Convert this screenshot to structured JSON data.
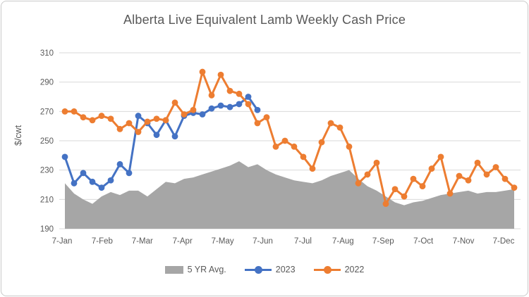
{
  "chart_data": {
    "type": "line",
    "title": "Alberta Live Equivalent Lamb Weekly Cash Price",
    "xlabel": "",
    "ylabel": "$/cwt",
    "ylim": [
      190,
      310
    ],
    "y_ticks": [
      310,
      290,
      270,
      250,
      230,
      210,
      190
    ],
    "x_tick_labels": [
      "7-Jan",
      "7-Feb",
      "7-Mar",
      "7-Apr",
      "7-May",
      "7-Jun",
      "7-Jul",
      "7-Aug",
      "7-Sep",
      "7-Oct",
      "7-Nov",
      "7-Dec"
    ],
    "x_unit": "week",
    "grid": "horizontal",
    "legend_position": "bottom",
    "series": [
      {
        "name": "5 YR Avg.",
        "type": "area",
        "color": "#a6a6a6",
        "values": [
          221,
          214,
          210,
          207,
          212,
          215,
          213,
          216,
          216,
          212,
          217,
          222,
          221,
          224,
          225,
          227,
          229,
          231,
          233,
          236,
          232,
          234,
          230,
          227,
          225,
          223,
          222,
          221,
          223,
          226,
          228,
          230,
          224,
          219,
          216,
          212,
          208,
          206,
          208,
          209,
          211,
          213,
          214,
          215,
          216,
          214,
          215,
          215,
          216,
          217
        ]
      },
      {
        "name": "2023",
        "type": "line",
        "color": "#4472c4",
        "values": [
          239,
          221,
          228,
          222,
          218,
          223,
          234,
          228,
          267,
          262,
          254,
          264,
          253,
          267,
          269,
          268,
          272,
          274,
          273,
          275,
          280,
          271
        ]
      },
      {
        "name": "2022",
        "type": "line",
        "color": "#ed7d31",
        "values": [
          270,
          270,
          266,
          264,
          267,
          265,
          258,
          262,
          256,
          263,
          265,
          264,
          276,
          268,
          271,
          297,
          281,
          295,
          284,
          282,
          275,
          262,
          266,
          246,
          250,
          246,
          239,
          231,
          249,
          262,
          259,
          246,
          221,
          227,
          235,
          207,
          217,
          212,
          224,
          219,
          231,
          239,
          214,
          226,
          223,
          235,
          227,
          232,
          224,
          218
        ]
      }
    ],
    "colors": {
      "gridline": "#d9d9d9",
      "axis_text": "#595959",
      "title_text": "#595959"
    }
  }
}
